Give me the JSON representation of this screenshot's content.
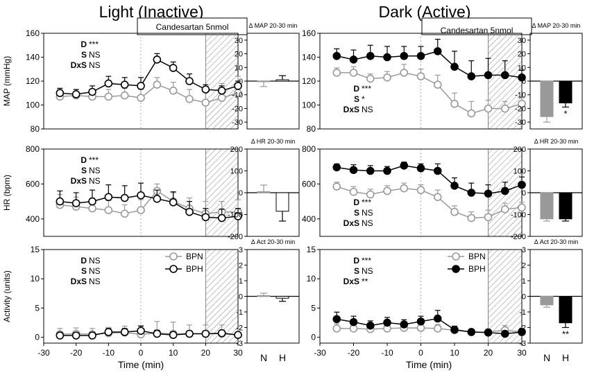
{
  "panels": {
    "left": {
      "title": "Light (Inactive)",
      "legend": [
        "BPN",
        "BPH"
      ],
      "bph_fill": "#ffffff"
    },
    "right": {
      "title": "Dark (Active)",
      "legend": [
        "BPN",
        "BPH"
      ],
      "bph_fill": "#000000"
    }
  },
  "treatment_label": "Candesartan 5nmol",
  "x_axis": {
    "label": "Time (min)",
    "ticks": [
      "-30",
      "-20",
      "-10",
      "0",
      "10",
      "20",
      "30"
    ],
    "range": [
      -30,
      30
    ]
  },
  "colors": {
    "bpn": "#999999",
    "bph": "#000000",
    "bar_n": "#999999",
    "bar_h_right": "#000000",
    "bar_h_left": "#ffffff"
  },
  "chart_data": {
    "type": "line",
    "time": [
      -25,
      -20,
      -15,
      -10,
      -5,
      0,
      5,
      10,
      15,
      20,
      25,
      30
    ],
    "treatment_window": [
      20,
      30
    ],
    "rows": [
      {
        "key": "map",
        "ylabel": "MAP (mmHg)",
        "ylim": [
          80,
          160
        ],
        "yticks": [
          "80",
          "100",
          "120",
          "140",
          "160"
        ],
        "stats": {
          "left": [
            [
              "D",
              "***"
            ],
            [
              "S",
              "NS"
            ],
            [
              "DxS",
              "NS"
            ]
          ],
          "right": [
            [
              "D",
              "***"
            ],
            [
              "S",
              "*"
            ],
            [
              "DxS",
              "NS"
            ]
          ]
        },
        "light": {
          "BPN": {
            "values": [
              107,
              108,
              107,
              107,
              108,
              106,
              117,
              112,
              105,
              102,
              106,
              110
            ],
            "err": [
              6,
              5,
              6,
              6,
              6,
              7,
              6,
              7,
              8,
              10,
              12,
              14
            ]
          },
          "BPH": {
            "values": [
              110,
              109,
              111,
              118,
              117,
              116,
              138,
              131,
              120,
              113,
              112,
              116
            ],
            "err": [
              4,
              4,
              5,
              6,
              6,
              7,
              5,
              5,
              6,
              4,
              4,
              4
            ]
          }
        },
        "dark": {
          "BPN": {
            "values": [
              127,
              127,
              122,
              123,
              127,
              124,
              117,
              101,
              93,
              97,
              97,
              101
            ],
            "err": [
              4,
              5,
              4,
              5,
              7,
              6,
              8,
              9,
              10,
              7,
              6,
              5
            ]
          },
          "BPH": {
            "values": [
              141,
              138,
              141,
              140,
              141,
              141,
              145,
              132,
              124,
              125,
              125,
              123
            ],
            "err": [
              6,
              8,
              9,
              9,
              8,
              8,
              10,
              13,
              13,
              14,
              12,
              6
            ]
          }
        },
        "bar": {
          "title": "Δ MAP 20-30 min",
          "ylim": [
            -35,
            35
          ],
          "yticks": [
            "30",
            "20",
            "10",
            "0",
            "-10",
            "-20",
            "-30"
          ],
          "light": {
            "N": 0,
            "H": 1,
            "N_err": -4,
            "H_err": 3,
            "sig": [
              "",
              ""
            ]
          },
          "dark": {
            "N": -26,
            "H": -16,
            "N_err": -4,
            "H_err": -3,
            "sig": [
              "",
              "*"
            ]
          }
        }
      },
      {
        "key": "hr",
        "ylabel": "HR (bpm)",
        "ylim": [
          300,
          800
        ],
        "yticks": [
          "400",
          "600",
          "800"
        ],
        "stats": {
          "left": [
            [
              "D",
              "***"
            ],
            [
              "S",
              "NS"
            ],
            [
              "DxS",
              "NS"
            ]
          ],
          "right": [
            [
              "D",
              "***"
            ],
            [
              "S",
              "NS"
            ],
            [
              "DxS",
              "NS"
            ]
          ]
        },
        "light": {
          "BPN": {
            "values": [
              480,
              470,
              460,
              450,
              430,
              450,
              560,
              500,
              460,
              430,
              440,
              440
            ],
            "err": [
              60,
              55,
              60,
              55,
              50,
              60,
              40,
              50,
              60,
              70,
              60,
              70
            ]
          },
          "BPH": {
            "values": [
              500,
              490,
              500,
              525,
              520,
              535,
              515,
              495,
              440,
              410,
              405,
              415
            ],
            "err": [
              60,
              60,
              65,
              70,
              70,
              70,
              50,
              60,
              60,
              50,
              50,
              45
            ]
          }
        },
        "dark": {
          "BPN": {
            "values": [
              585,
              555,
              540,
              560,
              575,
              565,
              525,
              440,
              405,
              410,
              455,
              465
            ],
            "err": [
              25,
              30,
              30,
              30,
              30,
              30,
              40,
              35,
              35,
              40,
              35,
              30
            ]
          },
          "BPH": {
            "values": [
              695,
              680,
              675,
              675,
              705,
              690,
              675,
              590,
              550,
              545,
              560,
              595
            ],
            "err": [
              20,
              30,
              30,
              25,
              20,
              25,
              40,
              45,
              55,
              50,
              50,
              45
            ]
          }
        },
        "bar": {
          "title": "Δ HR 20-30 min",
          "ylim": [
            -200,
            200
          ],
          "yticks": [
            "200",
            "100",
            "0",
            "-100",
            "-200"
          ],
          "light": {
            "N": 5,
            "H": -85,
            "N_err": 30,
            "H_err": -45,
            "sig": [
              "",
              ""
            ]
          },
          "dark": {
            "N": -120,
            "H": -120,
            "N_err": -10,
            "H_err": -10,
            "sig": [
              "",
              ""
            ]
          }
        }
      },
      {
        "key": "act",
        "ylabel": "Activity  (units)",
        "ylim": [
          -1,
          15
        ],
        "yticks": [
          "0",
          "5",
          "10",
          "15"
        ],
        "stats": {
          "left": [
            [
              "D",
              "NS"
            ],
            [
              "S",
              "NS"
            ],
            [
              "DxS",
              "NS"
            ]
          ],
          "right": [
            [
              "D",
              "***"
            ],
            [
              "S",
              "NS"
            ],
            [
              "DxS",
              "**"
            ]
          ]
        },
        "light": {
          "BPN": {
            "values": [
              0.5,
              0.6,
              0.5,
              0.7,
              0.8,
              0.5,
              0.7,
              0.6,
              0.6,
              0.6,
              0.6,
              0.4
            ],
            "err": [
              1.0,
              1.0,
              1.0,
              1.0,
              1.1,
              1.5,
              2.0,
              2.0,
              1.5,
              1.5,
              1.5,
              1.0
            ]
          },
          "BPH": {
            "values": [
              0.3,
              0.3,
              0.3,
              0.9,
              0.9,
              1.1,
              0.6,
              0.4,
              0.6,
              0.6,
              0.7,
              0.4
            ],
            "err": [
              0.5,
              0.5,
              0.5,
              0.6,
              0.6,
              0.8,
              0.6,
              0.5,
              0.5,
              0.5,
              0.5,
              0.4
            ]
          }
        },
        "dark": {
          "BPN": {
            "values": [
              1.5,
              1.5,
              1.4,
              1.5,
              1.6,
              1.6,
              1.5,
              1.2,
              0.9,
              0.9,
              1.2,
              0.9
            ],
            "err": [
              0.8,
              0.8,
              0.8,
              0.8,
              0.8,
              0.8,
              0.7,
              0.6,
              0.5,
              0.5,
              0.8,
              0.6
            ]
          },
          "BPH": {
            "values": [
              3.1,
              2.6,
              2.0,
              2.5,
              2.2,
              2.7,
              3.2,
              1.3,
              0.9,
              0.8,
              0.6,
              0.9
            ],
            "err": [
              1.2,
              1.0,
              0.8,
              0.9,
              0.8,
              0.9,
              1.4,
              0.6,
              0.4,
              0.3,
              0.3,
              0.5
            ]
          }
        },
        "bar": {
          "title": "Δ Act 20-30 min",
          "ylim": [
            -3,
            3
          ],
          "yticks": [
            "3",
            "2",
            "1",
            "0",
            "-1",
            "-2",
            "-3"
          ],
          "light": {
            "N": 0.05,
            "H": -0.12,
            "N_err": 0.15,
            "H_err": -0.2,
            "sig": [
              "",
              ""
            ]
          },
          "dark": {
            "N": -0.55,
            "H": -1.7,
            "N_err": -0.15,
            "H_err": -0.3,
            "sig": [
              "",
              "**"
            ]
          }
        }
      }
    ],
    "bar_categories": [
      "N",
      "H"
    ]
  }
}
